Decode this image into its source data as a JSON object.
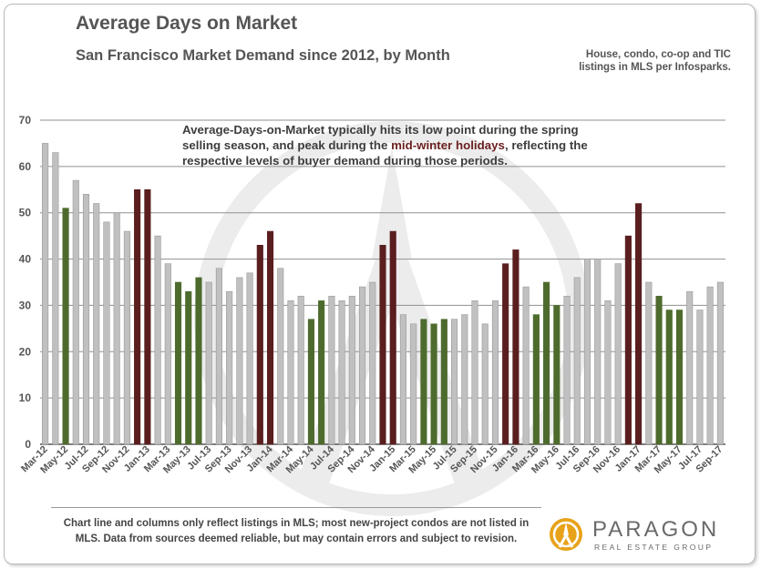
{
  "title": "Average Days on Market",
  "subtitle": "San Francisco Market Demand since 2012, by Month",
  "source_note": [
    "House, condo, co-op and TIC",
    "listings in MLS per Infosparks."
  ],
  "annotation": {
    "part1": "Average-Days-on-Market typically hits its low point during the spring selling season, and peak during the ",
    "highlight": "mid-winter holidays",
    "part2": ", reflecting the respective levels of buyer demand during those periods."
  },
  "footnote": "Chart line and columns only reflect listings in MLS; most new-project condos are not listed in MLS. Data from sources deemed reliable, but may contain errors and subject to revision.",
  "logo": {
    "name": "PARAGON",
    "tagline": "REAL ESTATE GROUP"
  },
  "colors": {
    "gray": "#c0c0c0",
    "green": "#4e6b2e",
    "maroon": "#5a1e1e",
    "grid": "#909090",
    "watermark": "#ececec"
  },
  "chart_data": {
    "type": "bar",
    "ylim": [
      0,
      70
    ],
    "yticks": [
      0,
      10,
      20,
      30,
      40,
      50,
      60,
      70
    ],
    "grid": true,
    "categories": [
      "Mar-12",
      "Apr-12",
      "May-12",
      "Jun-12",
      "Jul-12",
      "Aug-12",
      "Sep-12",
      "Oct-12",
      "Nov-12",
      "Dec-12",
      "Jan-13",
      "Feb-13",
      "Mar-13",
      "Apr-13",
      "May-13",
      "Jun-13",
      "Jul-13",
      "Aug-13",
      "Sep-13",
      "Oct-13",
      "Nov-13",
      "Dec-13",
      "Jan-14",
      "Feb-14",
      "Mar-14",
      "Apr-14",
      "May-14",
      "Jun-14",
      "Jul-14",
      "Aug-14",
      "Sep-14",
      "Oct-14",
      "Nov-14",
      "Dec-14",
      "Jan-15",
      "Feb-15",
      "Mar-15",
      "Apr-15",
      "May-15",
      "Jun-15",
      "Jul-15",
      "Aug-15",
      "Sep-15",
      "Oct-15",
      "Nov-15",
      "Dec-15",
      "Jan-16",
      "Feb-16",
      "Mar-16",
      "Apr-16",
      "May-16",
      "Jun-16",
      "Jul-16",
      "Aug-16",
      "Sep-16",
      "Oct-16",
      "Nov-16",
      "Dec-16",
      "Jan-17",
      "Feb-17",
      "Mar-17",
      "Apr-17",
      "May-17",
      "Jun-17",
      "Jul-17",
      "Aug-17",
      "Sep-17"
    ],
    "xtick_labels": [
      "Mar-12",
      "May-12",
      "Jul-12",
      "Sep-12",
      "Nov-12",
      "Jan-13",
      "Mar-13",
      "May-13",
      "Jul-13",
      "Sep-13",
      "Nov-13",
      "Jan-14",
      "Mar-14",
      "May-14",
      "Jul-14",
      "Sep-14",
      "Nov-14",
      "Jan-15",
      "Mar-15",
      "May-15",
      "Jul-15",
      "Sep-15",
      "Nov-15",
      "Jan-16",
      "Mar-16",
      "May-16",
      "Jul-16",
      "Sep-16",
      "Nov-16",
      "Jan-17",
      "Mar-17",
      "May-17",
      "Jul-17",
      "Sep-17"
    ],
    "values": [
      65,
      63,
      51,
      57,
      54,
      52,
      48,
      50,
      46,
      55,
      55,
      45,
      39,
      35,
      33,
      36,
      35,
      38,
      33,
      36,
      37,
      43,
      46,
      38,
      31,
      32,
      27,
      31,
      32,
      31,
      32,
      34,
      35,
      43,
      46,
      28,
      26,
      27,
      26,
      27,
      27,
      28,
      31,
      26,
      31,
      39,
      42,
      34,
      28,
      35,
      30,
      32,
      36,
      40,
      40,
      31,
      39,
      45,
      52,
      35,
      32,
      29,
      29,
      33,
      29,
      34,
      35
    ],
    "bar_colors": [
      "gray",
      "gray",
      "green",
      "gray",
      "gray",
      "gray",
      "gray",
      "gray",
      "gray",
      "maroon",
      "maroon",
      "gray",
      "gray",
      "green",
      "green",
      "green",
      "gray",
      "gray",
      "gray",
      "gray",
      "gray",
      "maroon",
      "maroon",
      "gray",
      "gray",
      "gray",
      "green",
      "green",
      "gray",
      "gray",
      "gray",
      "gray",
      "gray",
      "maroon",
      "maroon",
      "gray",
      "gray",
      "green",
      "green",
      "green",
      "gray",
      "gray",
      "gray",
      "gray",
      "gray",
      "maroon",
      "maroon",
      "gray",
      "green",
      "green",
      "green",
      "gray",
      "gray",
      "gray",
      "gray",
      "gray",
      "gray",
      "maroon",
      "maroon",
      "gray",
      "green",
      "green",
      "green",
      "gray",
      "gray",
      "gray",
      "gray"
    ]
  }
}
